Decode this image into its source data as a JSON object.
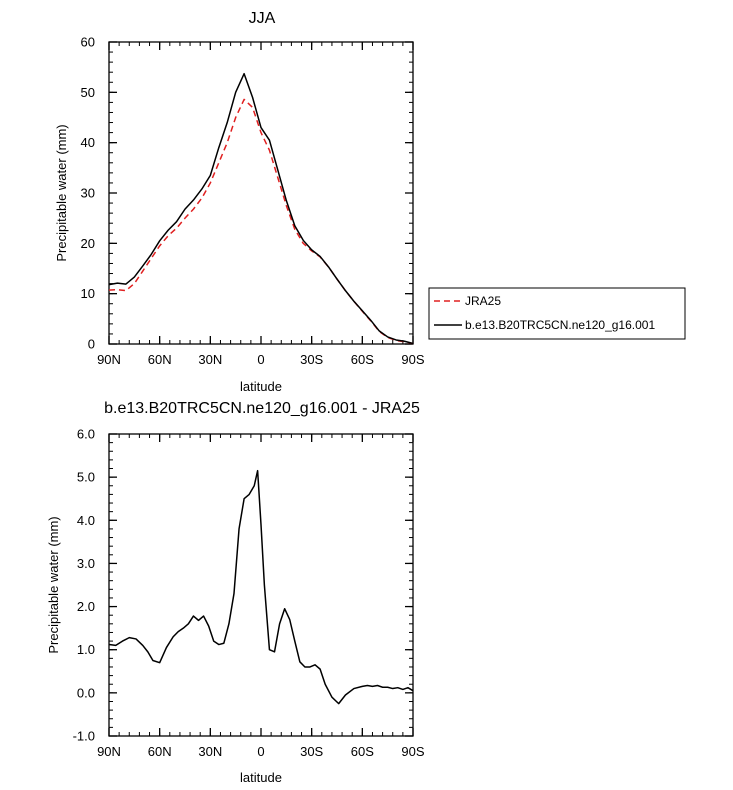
{
  "chart_data": [
    {
      "type": "line",
      "title": "JJA",
      "xlabel": "latitude",
      "ylabel": "Precipitable water (mm)",
      "xlim": [
        90,
        -90
      ],
      "ylim": [
        0,
        60
      ],
      "x_ticks": [
        90,
        60,
        30,
        0,
        -30,
        -60,
        -90
      ],
      "x_tick_labels": [
        "90N",
        "60N",
        "30N",
        "0",
        "30S",
        "60S",
        "90S"
      ],
      "y_ticks": [
        0,
        10,
        20,
        30,
        40,
        50,
        60
      ],
      "y_tick_labels": [
        "0",
        "10",
        "20",
        "30",
        "40",
        "50",
        "60"
      ],
      "legend": "right",
      "grid": false,
      "x": [
        90,
        85,
        80,
        75,
        70,
        65,
        60,
        55,
        50,
        45,
        40,
        35,
        30,
        25,
        20,
        15,
        10,
        5,
        0,
        -5,
        -10,
        -15,
        -20,
        -25,
        -30,
        -35,
        -40,
        -45,
        -50,
        -55,
        -60,
        -65,
        -70,
        -75,
        -80,
        -85,
        -90
      ],
      "series": [
        {
          "name": "JRA25",
          "color": "#e02020",
          "dash": "dashed",
          "values": [
            10.7,
            10.8,
            10.6,
            12.0,
            14.5,
            17.0,
            19.5,
            21.5,
            23.0,
            25.0,
            26.8,
            29.0,
            32.0,
            36.0,
            40.0,
            45.0,
            48.6,
            47.0,
            42.0,
            38.5,
            33.0,
            27.5,
            22.8,
            20.0,
            18.5,
            17.3,
            15.3,
            12.9,
            10.6,
            8.5,
            6.5,
            4.6,
            2.5,
            1.3,
            0.7,
            0.45,
            0.1
          ]
        },
        {
          "name": "b.e13.B20TRC5CN.ne120_g16.001",
          "color": "#000000",
          "dash": "solid",
          "values": [
            11.8,
            12.1,
            11.9,
            13.3,
            15.5,
            17.8,
            20.5,
            22.6,
            24.3,
            26.8,
            28.6,
            30.8,
            33.5,
            39.0,
            44.0,
            50.0,
            53.7,
            49.0,
            43.0,
            40.5,
            34.5,
            28.5,
            23.5,
            20.6,
            18.7,
            17.4,
            15.3,
            12.9,
            10.6,
            8.5,
            6.6,
            4.7,
            2.6,
            1.4,
            0.8,
            0.55,
            0.1
          ]
        }
      ]
    },
    {
      "type": "line",
      "title": "b.e13.B20TRC5CN.ne120_g16.001 - JRA25",
      "xlabel": "latitude",
      "ylabel": "Precipitable water (mm)",
      "xlim": [
        90,
        -90
      ],
      "ylim": [
        -1.0,
        6.0
      ],
      "x_ticks": [
        90,
        60,
        30,
        0,
        -30,
        -60,
        -90
      ],
      "x_tick_labels": [
        "90N",
        "60N",
        "30N",
        "0",
        "30S",
        "60S",
        "90S"
      ],
      "y_ticks": [
        -1.0,
        0.0,
        1.0,
        2.0,
        3.0,
        4.0,
        5.0,
        6.0
      ],
      "y_tick_labels": [
        "-1.0",
        "0.0",
        "1.0",
        "2.0",
        "3.0",
        "4.0",
        "5.0",
        "6.0"
      ],
      "grid": false,
      "x": [
        90,
        86,
        82,
        78,
        74,
        70,
        67,
        64,
        60,
        56,
        52,
        49,
        46,
        43,
        40,
        37,
        34,
        31,
        28,
        25,
        22,
        19,
        16,
        13,
        10,
        7,
        4,
        2,
        0,
        -2,
        -5,
        -8,
        -11,
        -14,
        -17,
        -20,
        -23,
        -26,
        -29,
        -32,
        -35,
        -38,
        -42,
        -46,
        -50,
        -55,
        -60,
        -63,
        -66,
        -69,
        -72,
        -75,
        -78,
        -81,
        -84,
        -87,
        -90
      ],
      "series": [
        {
          "name": "",
          "color": "#000000",
          "dash": "solid",
          "values": [
            1.12,
            1.1,
            1.2,
            1.28,
            1.25,
            1.1,
            0.95,
            0.75,
            0.7,
            1.05,
            1.3,
            1.42,
            1.5,
            1.6,
            1.78,
            1.68,
            1.78,
            1.55,
            1.2,
            1.12,
            1.15,
            1.6,
            2.3,
            3.8,
            4.5,
            4.6,
            4.8,
            5.15,
            3.9,
            2.5,
            1.0,
            0.95,
            1.6,
            1.95,
            1.7,
            1.2,
            0.72,
            0.6,
            0.6,
            0.65,
            0.55,
            0.2,
            -0.1,
            -0.25,
            -0.05,
            0.1,
            0.15,
            0.17,
            0.15,
            0.17,
            0.13,
            0.13,
            0.1,
            0.12,
            0.08,
            0.12,
            0.05
          ]
        }
      ]
    }
  ]
}
